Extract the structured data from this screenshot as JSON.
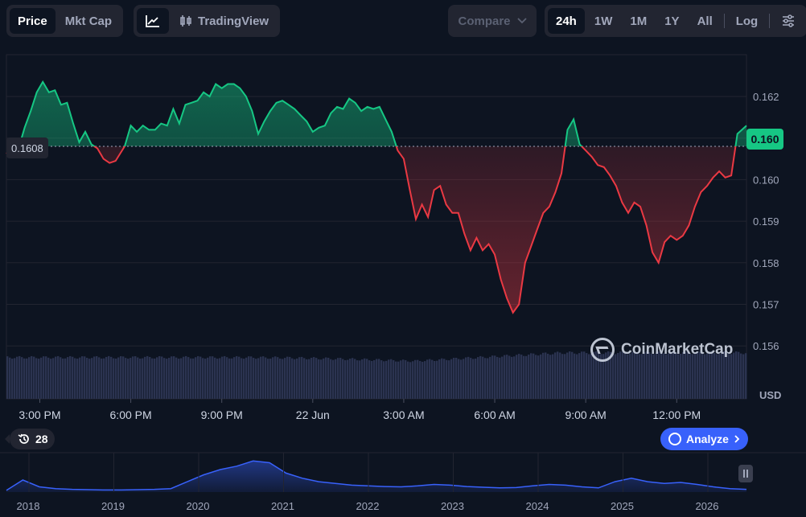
{
  "toolbar": {
    "price_label": "Price",
    "mktcap_label": "Mkt Cap",
    "tradingview_label": "TradingView",
    "compare_label": "Compare",
    "ranges": [
      "24h",
      "1W",
      "1M",
      "1Y",
      "All"
    ],
    "active_range": "24h",
    "log_label": "Log"
  },
  "current_price_label": "0.160",
  "reference_price_label": "0.1608",
  "currency_label": "USD",
  "watermark_label": "CoinMarketCap",
  "counter_label": "28",
  "analyze_label": "Analyze",
  "colors": {
    "up": "#16c784",
    "down": "#ea3943",
    "accent": "#3861fb",
    "bg": "#0d1421"
  },
  "chart_data": {
    "type": "line",
    "reference_price": 0.1608,
    "ylim": [
      0.1555,
      0.163
    ],
    "y_ticks": [
      0.162,
      0.161,
      0.16,
      0.159,
      0.158,
      0.157,
      0.156
    ],
    "y_tick_labels": [
      "0.162",
      "",
      "0.160",
      "0.159",
      "0.158",
      "0.157",
      "0.156"
    ],
    "x_tick_labels": [
      "3:00 PM",
      "6:00 PM",
      "9:00 PM",
      "22 Jun",
      "3:00 AM",
      "6:00 AM",
      "9:00 AM",
      "12:00 PM"
    ],
    "x_range_hours": [
      -1.1,
      23.3
    ],
    "series": [
      {
        "points": [
          [
            -1.1,
            0.16065
          ],
          [
            -0.9,
            0.16055
          ],
          [
            -0.7,
            0.16075
          ],
          [
            -0.5,
            0.16125
          ],
          [
            -0.3,
            0.16165
          ],
          [
            -0.1,
            0.1621
          ],
          [
            0.1,
            0.16235
          ],
          [
            0.3,
            0.1621
          ],
          [
            0.5,
            0.16215
          ],
          [
            0.7,
            0.1618
          ],
          [
            0.9,
            0.16185
          ],
          [
            1.1,
            0.16135
          ],
          [
            1.3,
            0.1609
          ],
          [
            1.5,
            0.16115
          ],
          [
            1.7,
            0.16085
          ],
          [
            1.9,
            0.16075
          ],
          [
            2.1,
            0.1605
          ],
          [
            2.3,
            0.1604
          ],
          [
            2.5,
            0.16045
          ],
          [
            2.8,
            0.1608
          ],
          [
            3.0,
            0.1613
          ],
          [
            3.2,
            0.16115
          ],
          [
            3.4,
            0.1613
          ],
          [
            3.6,
            0.1612
          ],
          [
            3.8,
            0.1612
          ],
          [
            4.0,
            0.16135
          ],
          [
            4.2,
            0.1613
          ],
          [
            4.4,
            0.1617
          ],
          [
            4.6,
            0.16135
          ],
          [
            4.8,
            0.1618
          ],
          [
            5.0,
            0.16185
          ],
          [
            5.2,
            0.1619
          ],
          [
            5.4,
            0.1621
          ],
          [
            5.6,
            0.162
          ],
          [
            5.8,
            0.1623
          ],
          [
            6.0,
            0.1622
          ],
          [
            6.2,
            0.1623
          ],
          [
            6.4,
            0.1623
          ],
          [
            6.6,
            0.1622
          ],
          [
            6.8,
            0.162
          ],
          [
            7.0,
            0.16165
          ],
          [
            7.2,
            0.1611
          ],
          [
            7.4,
            0.1614
          ],
          [
            7.6,
            0.16165
          ],
          [
            7.8,
            0.16185
          ],
          [
            8.0,
            0.1619
          ],
          [
            8.2,
            0.1618
          ],
          [
            8.4,
            0.1617
          ],
          [
            8.6,
            0.16155
          ],
          [
            8.8,
            0.1614
          ],
          [
            9.0,
            0.16115
          ],
          [
            9.2,
            0.16125
          ],
          [
            9.4,
            0.1613
          ],
          [
            9.6,
            0.1616
          ],
          [
            9.8,
            0.16175
          ],
          [
            10.0,
            0.1617
          ],
          [
            10.2,
            0.16195
          ],
          [
            10.4,
            0.16185
          ],
          [
            10.6,
            0.16165
          ],
          [
            10.8,
            0.16175
          ],
          [
            11.0,
            0.1617
          ],
          [
            11.2,
            0.16175
          ],
          [
            11.4,
            0.16145
          ],
          [
            11.6,
            0.16115
          ],
          [
            11.8,
            0.1607
          ],
          [
            12.0,
            0.1605
          ],
          [
            12.2,
            0.15975
          ],
          [
            12.4,
            0.15905
          ],
          [
            12.6,
            0.1594
          ],
          [
            12.8,
            0.1591
          ],
          [
            13.0,
            0.15975
          ],
          [
            13.2,
            0.15985
          ],
          [
            13.4,
            0.1594
          ],
          [
            13.6,
            0.1592
          ],
          [
            13.8,
            0.1592
          ],
          [
            14.0,
            0.1587
          ],
          [
            14.2,
            0.1583
          ],
          [
            14.4,
            0.1586
          ],
          [
            14.6,
            0.1583
          ],
          [
            14.8,
            0.15845
          ],
          [
            15.0,
            0.1582
          ],
          [
            15.2,
            0.1576
          ],
          [
            15.4,
            0.15715
          ],
          [
            15.6,
            0.1568
          ],
          [
            15.8,
            0.157
          ],
          [
            16.0,
            0.158
          ],
          [
            16.2,
            0.1584
          ],
          [
            16.4,
            0.1588
          ],
          [
            16.6,
            0.1592
          ],
          [
            16.8,
            0.15935
          ],
          [
            17.0,
            0.1597
          ],
          [
            17.2,
            0.16015
          ],
          [
            17.4,
            0.1612
          ],
          [
            17.6,
            0.16145
          ],
          [
            17.8,
            0.16085
          ],
          [
            18.0,
            0.1607
          ],
          [
            18.2,
            0.16055
          ],
          [
            18.4,
            0.16035
          ],
          [
            18.6,
            0.1603
          ],
          [
            18.8,
            0.1601
          ],
          [
            19.0,
            0.15985
          ],
          [
            19.2,
            0.15945
          ],
          [
            19.4,
            0.1592
          ],
          [
            19.6,
            0.15945
          ],
          [
            19.8,
            0.15935
          ],
          [
            20.0,
            0.1589
          ],
          [
            20.2,
            0.15825
          ],
          [
            20.4,
            0.158
          ],
          [
            20.6,
            0.1585
          ],
          [
            20.8,
            0.15865
          ],
          [
            21.0,
            0.15855
          ],
          [
            21.2,
            0.15865
          ],
          [
            21.4,
            0.1589
          ],
          [
            21.6,
            0.15935
          ],
          [
            21.8,
            0.1597
          ],
          [
            22.0,
            0.15985
          ],
          [
            22.2,
            0.16005
          ],
          [
            22.4,
            0.1602
          ],
          [
            22.6,
            0.16005
          ],
          [
            22.8,
            0.1601
          ],
          [
            23.0,
            0.1611
          ],
          [
            23.3,
            0.1613
          ]
        ]
      }
    ],
    "volume": {
      "start_level": 0.9,
      "dip_level": 0.82,
      "end_level": 1.0
    },
    "navigator": {
      "x_tick_labels": [
        "2018",
        "2019",
        "2020",
        "2021",
        "2022",
        "2023",
        "2024",
        "2025",
        "2026"
      ],
      "relative_values": [
        0.05,
        0.35,
        0.15,
        0.1,
        0.08,
        0.07,
        0.06,
        0.06,
        0.07,
        0.08,
        0.1,
        0.3,
        0.5,
        0.65,
        0.75,
        0.9,
        0.85,
        0.55,
        0.4,
        0.3,
        0.25,
        0.2,
        0.18,
        0.16,
        0.15,
        0.18,
        0.22,
        0.2,
        0.16,
        0.14,
        0.12,
        0.13,
        0.18,
        0.22,
        0.2,
        0.15,
        0.12,
        0.3,
        0.4,
        0.3,
        0.25,
        0.28,
        0.22,
        0.15,
        0.1,
        0.08
      ]
    }
  }
}
